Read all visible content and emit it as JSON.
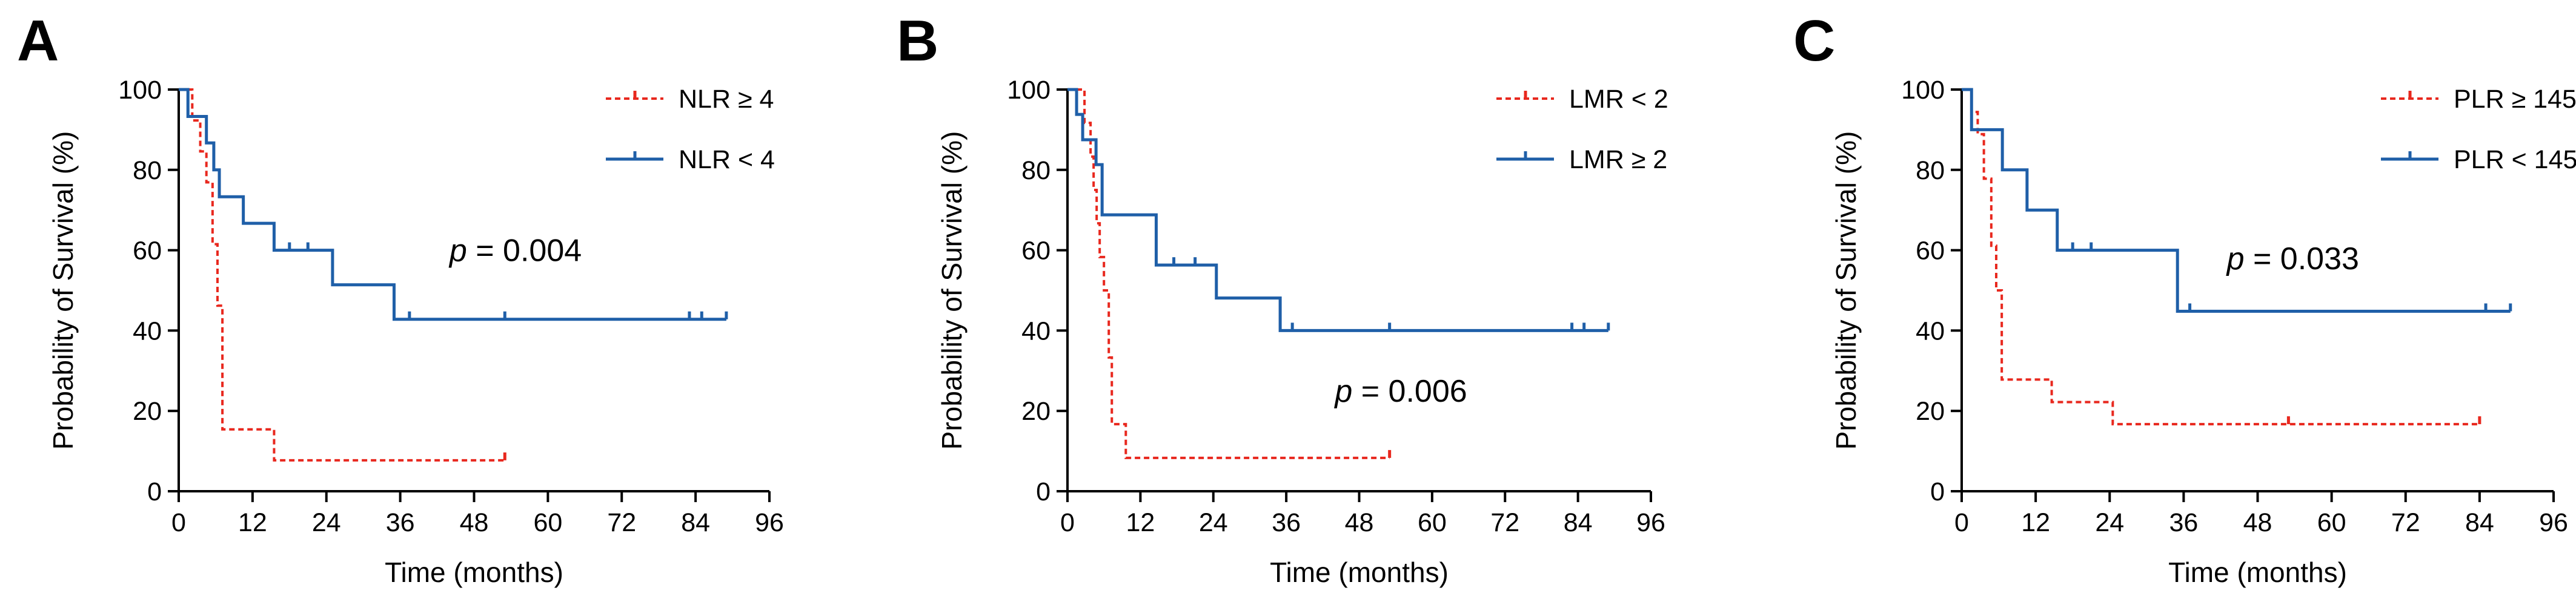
{
  "chart_data": [
    {
      "type": "line",
      "panel": "A",
      "title": "",
      "xlabel": "Time (months)",
      "ylabel": "Probability of Survival (%)",
      "xlim": [
        0,
        96
      ],
      "ylim": [
        0,
        100
      ],
      "xticks": [
        "0",
        "12",
        "24",
        "36",
        "48",
        "60",
        "72",
        "84",
        "96"
      ],
      "yticks": [
        "0",
        "20",
        "40",
        "60",
        "80",
        "100"
      ],
      "legend_position": "top-right",
      "annotation": {
        "prefix": "p",
        "text": " = 0.004",
        "x": 44,
        "y": 60
      },
      "series": [
        {
          "name": "NLR ≥ 4",
          "color": "#e8281e",
          "dashed": true,
          "steps": [
            [
              0,
              100
            ],
            [
              2.2,
              92.3
            ],
            [
              3.5,
              84.6
            ],
            [
              4.5,
              76.9
            ],
            [
              5.5,
              61.5
            ],
            [
              6.3,
              46.2
            ],
            [
              7.1,
              15.4
            ],
            [
              15.5,
              7.7
            ],
            [
              53,
              7.7
            ]
          ],
          "censors": [
            [
              53,
              7.7
            ]
          ]
        },
        {
          "name": "NLR < 4",
          "color": "#1f5fa8",
          "dashed": false,
          "steps": [
            [
              0,
              100
            ],
            [
              1.5,
              93.3
            ],
            [
              4.5,
              86.7
            ],
            [
              5.7,
              80
            ],
            [
              6.6,
              73.3
            ],
            [
              10.5,
              66.7
            ],
            [
              15.5,
              60
            ],
            [
              25,
              51.4
            ],
            [
              35,
              42.8
            ],
            [
              89,
              42.8
            ]
          ],
          "censors": [
            [
              18,
              60
            ],
            [
              21,
              60
            ],
            [
              37.5,
              42.8
            ],
            [
              53,
              42.8
            ],
            [
              83,
              42.8
            ],
            [
              85,
              42.8
            ],
            [
              89,
              42.8
            ]
          ]
        }
      ]
    },
    {
      "type": "line",
      "panel": "B",
      "title": "",
      "xlabel": "Time (months)",
      "ylabel": "Probability of Survival (%)",
      "xlim": [
        0,
        96
      ],
      "ylim": [
        0,
        100
      ],
      "xticks": [
        "0",
        "12",
        "24",
        "36",
        "48",
        "60",
        "72",
        "84",
        "96"
      ],
      "yticks": [
        "0",
        "20",
        "40",
        "60",
        "80",
        "100"
      ],
      "legend_position": "top-right",
      "annotation": {
        "prefix": "p",
        "text": " = 0.006",
        "x": 44,
        "y": 25
      },
      "series": [
        {
          "name": "LMR < 2",
          "color": "#e8281e",
          "dashed": true,
          "steps": [
            [
              0,
              100
            ],
            [
              2.8,
              91.7
            ],
            [
              3.8,
              83.3
            ],
            [
              4.3,
              75
            ],
            [
              4.8,
              66.7
            ],
            [
              5.3,
              58.3
            ],
            [
              6,
              50
            ],
            [
              6.8,
              33.3
            ],
            [
              7.3,
              16.7
            ],
            [
              9.6,
              8.3
            ],
            [
              53,
              8.3
            ]
          ],
          "censors": [
            [
              53,
              8.3
            ]
          ]
        },
        {
          "name": "LMR ≥ 2",
          "color": "#1f5fa8",
          "dashed": false,
          "steps": [
            [
              0,
              100
            ],
            [
              1.5,
              93.8
            ],
            [
              2.5,
              87.5
            ],
            [
              4.7,
              81.3
            ],
            [
              5.7,
              68.8
            ],
            [
              14.6,
              56.3
            ],
            [
              24.5,
              48.1
            ],
            [
              35,
              40
            ],
            [
              89,
              40
            ]
          ],
          "censors": [
            [
              17.5,
              56.3
            ],
            [
              21,
              56.3
            ],
            [
              37,
              40
            ],
            [
              53,
              40
            ],
            [
              83,
              40
            ],
            [
              85,
              40
            ],
            [
              89,
              40
            ]
          ]
        }
      ]
    },
    {
      "type": "line",
      "panel": "C",
      "title": "",
      "xlabel": "Time (months)",
      "ylabel": "Probability of Survival (%)",
      "xlim": [
        0,
        96
      ],
      "ylim": [
        0,
        100
      ],
      "xticks": [
        "0",
        "12",
        "24",
        "36",
        "48",
        "60",
        "72",
        "84",
        "96"
      ],
      "yticks": [
        "0",
        "20",
        "40",
        "60",
        "80",
        "100"
      ],
      "legend_position": "top-right",
      "annotation": {
        "prefix": "p",
        "text": " = 0.033",
        "x": 43,
        "y": 58
      },
      "series": [
        {
          "name": "PLR ≥ 145",
          "color": "#e8281e",
          "dashed": true,
          "steps": [
            [
              0,
              100
            ],
            [
              1.6,
              94.4
            ],
            [
              2.6,
              88.9
            ],
            [
              3.6,
              77.8
            ],
            [
              4.8,
              61.1
            ],
            [
              5.6,
              50
            ],
            [
              6.5,
              27.8
            ],
            [
              14.6,
              22.2
            ],
            [
              24.5,
              16.7
            ],
            [
              84,
              16.7
            ]
          ],
          "censors": [
            [
              53,
              16.7
            ],
            [
              84,
              16.7
            ]
          ]
        },
        {
          "name": "PLR < 145",
          "color": "#1f5fa8",
          "dashed": false,
          "steps": [
            [
              0,
              100
            ],
            [
              1.6,
              90
            ],
            [
              6.6,
              80
            ],
            [
              10.6,
              70
            ],
            [
              15.5,
              60
            ],
            [
              35,
              44.8
            ],
            [
              89,
              44.8
            ]
          ],
          "censors": [
            [
              18,
              60
            ],
            [
              21,
              60
            ],
            [
              37,
              44.8
            ],
            [
              85,
              44.8
            ],
            [
              89,
              44.8
            ]
          ]
        }
      ]
    }
  ]
}
